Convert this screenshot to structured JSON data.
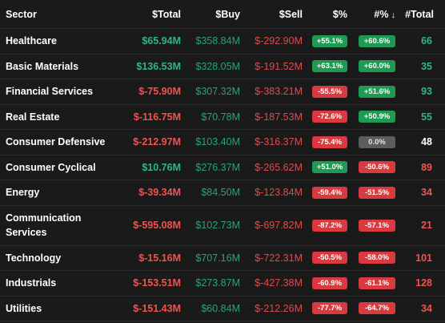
{
  "header": {
    "sector": "Sector",
    "total": "$Total",
    "buy": "$Buy",
    "sell": "$Sell",
    "pct": "$%",
    "pct_n": "#%",
    "sort_arrow": "↓",
    "count": "#Total"
  },
  "colors": {
    "positive_text": "#2fb58a",
    "negative_text": "#ef5350",
    "positive_badge": "#1f9a52",
    "negative_badge": "#d93a40",
    "neutral_badge": "#5c5c5c",
    "background": "#1a1a1a"
  },
  "rows": [
    {
      "sector": "Healthcare",
      "total": "$65.94M",
      "buy": "$358.84M",
      "sell": "$-292.90M",
      "pct": "+55.1%",
      "pct_n": "+60.6%",
      "count": "66",
      "total_tone": "pos",
      "pct_tone": "pos",
      "pct_n_tone": "pos",
      "count_tone": "pos"
    },
    {
      "sector": "Basic Materials",
      "total": "$136.53M",
      "buy": "$328.05M",
      "sell": "$-191.52M",
      "pct": "+63.1%",
      "pct_n": "+60.0%",
      "count": "35",
      "total_tone": "pos",
      "pct_tone": "pos",
      "pct_n_tone": "pos",
      "count_tone": "pos"
    },
    {
      "sector": "Financial Services",
      "total": "$-75.90M",
      "buy": "$307.32M",
      "sell": "$-383.21M",
      "pct": "-55.5%",
      "pct_n": "+51.6%",
      "count": "93",
      "total_tone": "neg",
      "pct_tone": "neg",
      "pct_n_tone": "pos",
      "count_tone": "pos"
    },
    {
      "sector": "Real Estate",
      "total": "$-116.75M",
      "buy": "$70.78M",
      "sell": "$-187.53M",
      "pct": "-72.6%",
      "pct_n": "+50.9%",
      "count": "55",
      "total_tone": "neg",
      "pct_tone": "neg",
      "pct_n_tone": "pos",
      "count_tone": "pos"
    },
    {
      "sector": "Consumer Defensive",
      "total": "$-212.97M",
      "buy": "$103.40M",
      "sell": "$-316.37M",
      "pct": "-75.4%",
      "pct_n": "0.0%",
      "count": "48",
      "total_tone": "neg",
      "pct_tone": "neg",
      "pct_n_tone": "neu",
      "count_tone": "neu"
    },
    {
      "sector": "Consumer Cyclical",
      "total": "$10.76M",
      "buy": "$276.37M",
      "sell": "$-265.62M",
      "pct": "+51.0%",
      "pct_n": "-50.6%",
      "count": "89",
      "total_tone": "pos",
      "pct_tone": "pos",
      "pct_n_tone": "neg",
      "count_tone": "neg"
    },
    {
      "sector": "Energy",
      "total": "$-39.34M",
      "buy": "$84.50M",
      "sell": "$-123.84M",
      "pct": "-59.4%",
      "pct_n": "-51.5%",
      "count": "34",
      "total_tone": "neg",
      "pct_tone": "neg",
      "pct_n_tone": "neg",
      "count_tone": "neg"
    },
    {
      "sector": "Communication Services",
      "total": "$-595.08M",
      "buy": "$102.73M",
      "sell": "$-697.82M",
      "pct": "-87.2%",
      "pct_n": "-57.1%",
      "count": "21",
      "total_tone": "neg",
      "pct_tone": "neg",
      "pct_n_tone": "neg",
      "count_tone": "neg"
    },
    {
      "sector": "Technology",
      "total": "$-15.16M",
      "buy": "$707.16M",
      "sell": "$-722.31M",
      "pct": "-50.5%",
      "pct_n": "-58.0%",
      "count": "101",
      "total_tone": "neg",
      "pct_tone": "neg",
      "pct_n_tone": "neg",
      "count_tone": "neg"
    },
    {
      "sector": "Industrials",
      "total": "$-153.51M",
      "buy": "$273.87M",
      "sell": "$-427.38M",
      "pct": "-60.9%",
      "pct_n": "-61.1%",
      "count": "128",
      "total_tone": "neg",
      "pct_tone": "neg",
      "pct_n_tone": "neg",
      "count_tone": "neg"
    },
    {
      "sector": "Utilities",
      "total": "$-151.43M",
      "buy": "$60.84M",
      "sell": "$-212.26M",
      "pct": "-77.7%",
      "pct_n": "-64.7%",
      "count": "34",
      "total_tone": "neg",
      "pct_tone": "neg",
      "pct_n_tone": "neg",
      "count_tone": "neg"
    }
  ]
}
